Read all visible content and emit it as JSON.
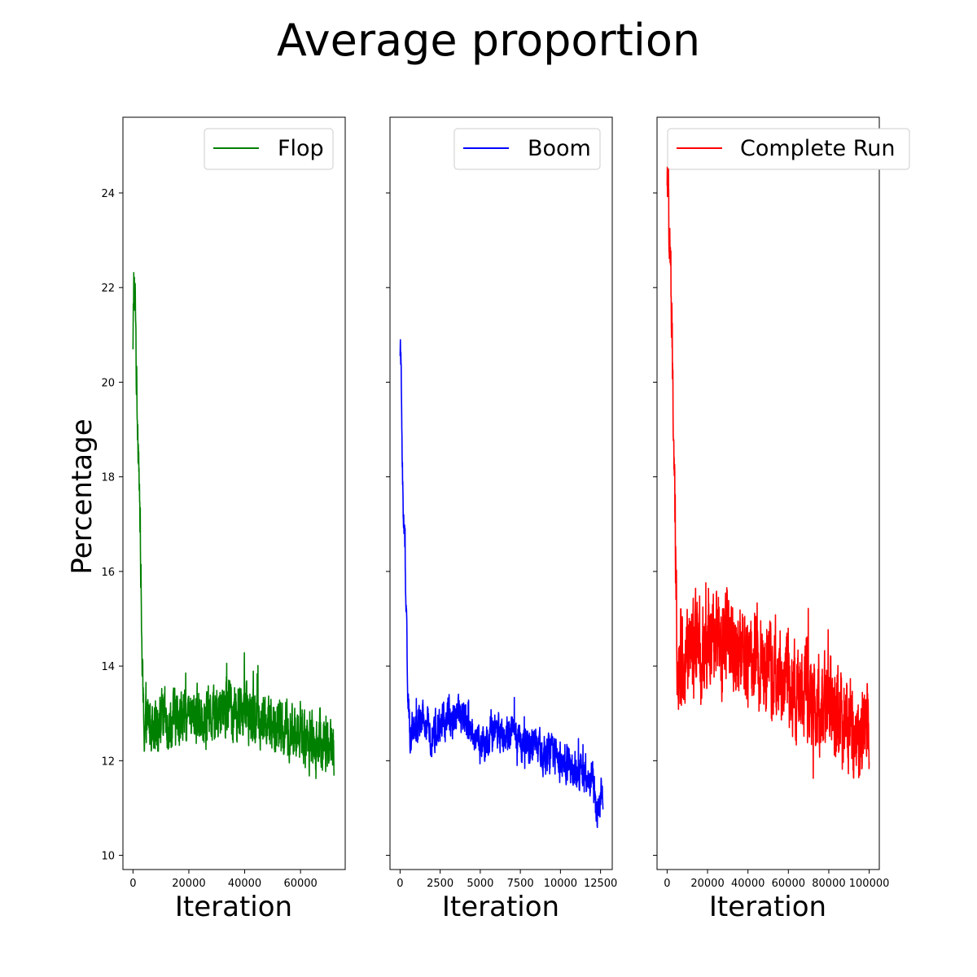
{
  "chart_data": {
    "title": "Average proportion",
    "ylabel": "Percentage",
    "ylim": [
      9.7,
      25.6
    ],
    "yticks": [
      10,
      12,
      14,
      16,
      18,
      20,
      22,
      24
    ],
    "grid": false,
    "panels": [
      {
        "type": "line",
        "xlabel": "Iteration",
        "xlim": [
          -3600,
          76000
        ],
        "xticks": [
          0,
          20000,
          40000,
          60000
        ],
        "legend": "top-right",
        "series": [
          {
            "name": "Flop",
            "color": "#008000",
            "noise": 0.45,
            "x": [
              0,
              300,
              600,
              900,
              1200,
              1500,
              1800,
              2100,
              2400,
              2700,
              3000,
              3300,
              3600,
              4000,
              5000,
              8000,
              12000,
              16000,
              20000,
              25000,
              30000,
              32000,
              36000,
              40000,
              45000,
              50000,
              55000,
              60000,
              65000,
              70000,
              72000
            ],
            "y": [
              20.5,
              22.4,
              21.5,
              21.8,
              20.2,
              19.5,
              19.0,
              18.6,
              17.0,
              16.8,
              15.0,
              14.0,
              13.2,
              12.7,
              12.8,
              12.9,
              12.8,
              12.9,
              12.9,
              13.0,
              13.0,
              13.2,
              13.1,
              13.0,
              12.9,
              12.7,
              12.6,
              12.5,
              12.4,
              12.4,
              12.3
            ]
          }
        ]
      },
      {
        "type": "line",
        "xlabel": "Iteration",
        "xlim": [
          -630,
          13230
        ],
        "xticks": [
          0,
          2500,
          5000,
          7500,
          10000,
          12500
        ],
        "legend": "top-right",
        "series": [
          {
            "name": "Boom",
            "color": "#0000ff",
            "noise": 0.3,
            "x": [
              0,
              60,
              120,
              180,
              240,
              300,
              360,
              420,
              480,
              540,
              600,
              700,
              1000,
              1500,
              2000,
              2500,
              3000,
              3500,
              4000,
              4500,
              5000,
              5500,
              6000,
              6500,
              7000,
              7500,
              8000,
              8500,
              9000,
              9500,
              10000,
              10500,
              11000,
              11500,
              12000,
              12300,
              12500,
              12650
            ],
            "y": [
              20.8,
              20.3,
              18.8,
              17.5,
              17.0,
              16.5,
              15.2,
              14.8,
              13.5,
              12.9,
              12.6,
              12.6,
              12.7,
              12.8,
              12.6,
              12.7,
              12.9,
              13.0,
              12.9,
              12.6,
              12.3,
              12.5,
              12.6,
              12.5,
              12.6,
              12.4,
              12.4,
              12.3,
              12.1,
              12.2,
              12.0,
              11.9,
              11.8,
              11.7,
              11.6,
              10.8,
              11.3,
              11.4
            ]
          }
        ]
      },
      {
        "type": "line",
        "xlabel": "Iteration",
        "xlim": [
          -5000,
          105000
        ],
        "xticks": [
          0,
          20000,
          40000,
          60000,
          80000,
          100000
        ],
        "legend": "top-right",
        "series": [
          {
            "name": "Complete Run",
            "color": "#ff0000",
            "noise": 0.75,
            "x": [
              0,
              400,
              800,
              1200,
              1600,
              2000,
              2500,
              3000,
              3500,
              4000,
              4500,
              5000,
              5500,
              6000,
              8000,
              12000,
              16000,
              20000,
              25000,
              30000,
              35000,
              40000,
              45000,
              50000,
              55000,
              60000,
              65000,
              70000,
              75000,
              80000,
              85000,
              90000,
              95000,
              100000
            ],
            "y": [
              24.2,
              24.8,
              23.5,
              22.8,
              23.0,
              21.5,
              20.5,
              19.5,
              18.0,
              16.5,
              15.5,
              14.5,
              14.0,
              14.2,
              14.3,
              14.2,
              14.3,
              14.3,
              14.5,
              14.6,
              14.4,
              14.2,
              14.1,
              14.0,
              14.0,
              13.7,
              13.5,
              13.3,
              13.2,
              13.1,
              12.9,
              12.8,
              12.7,
              12.6
            ]
          }
        ]
      }
    ]
  }
}
